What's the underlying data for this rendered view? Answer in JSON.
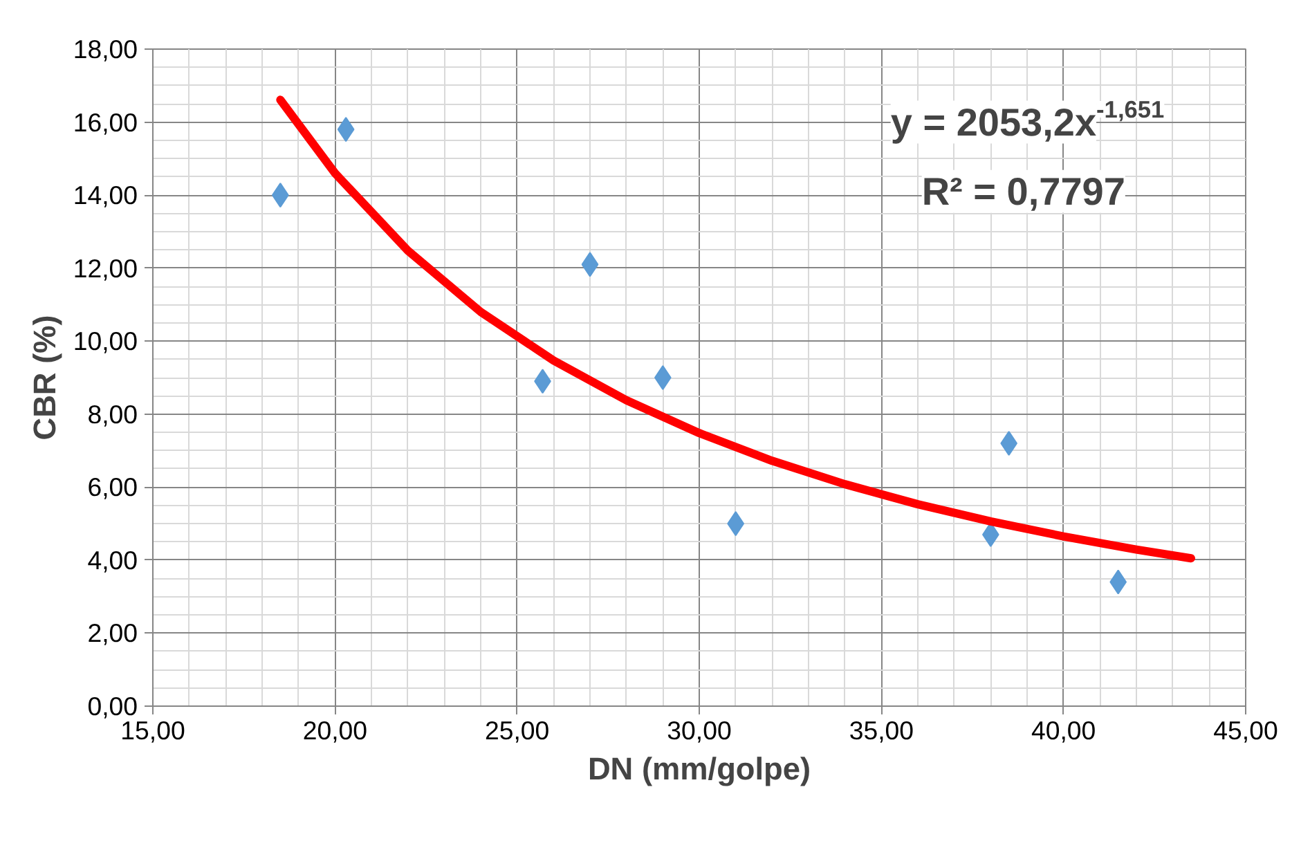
{
  "chart_data": {
    "type": "scatter",
    "xlabel": "DN (mm/golpe)",
    "ylabel": "CBR (%)",
    "xlim": [
      15,
      45
    ],
    "ylim": [
      0,
      18
    ],
    "xticks": [
      {
        "value": 15,
        "label": "15,00"
      },
      {
        "value": 20,
        "label": "20,00"
      },
      {
        "value": 25,
        "label": "25,00"
      },
      {
        "value": 30,
        "label": "30,00"
      },
      {
        "value": 35,
        "label": "35,00"
      },
      {
        "value": 40,
        "label": "40,00"
      },
      {
        "value": 45,
        "label": "45,00"
      }
    ],
    "yticks": [
      {
        "value": 0,
        "label": "0,00"
      },
      {
        "value": 2,
        "label": "2,00"
      },
      {
        "value": 4,
        "label": "4,00"
      },
      {
        "value": 6,
        "label": "6,00"
      },
      {
        "value": 8,
        "label": "8,00"
      },
      {
        "value": 10,
        "label": "10,00"
      },
      {
        "value": 12,
        "label": "12,00"
      },
      {
        "value": 14,
        "label": "14,00"
      },
      {
        "value": 16,
        "label": "16,00"
      },
      {
        "value": 18,
        "label": "18,00"
      }
    ],
    "grid": true,
    "series": [
      {
        "marker": "diamond",
        "color": "#5b9bd5",
        "x": [
          18.5,
          20.3,
          25.7,
          27.0,
          29.0,
          31.0,
          38.0,
          38.5,
          41.5
        ],
        "values": [
          14.0,
          15.8,
          8.9,
          12.1,
          9.0,
          5.0,
          4.7,
          7.2,
          3.4
        ]
      },
      {
        "type": "line",
        "marker": "none",
        "color": "#ff0000",
        "x": [
          18.5,
          20,
          22,
          24,
          26,
          28,
          30,
          32,
          34,
          36,
          38,
          40,
          42,
          43.5
        ],
        "values": [
          16.61,
          14.6,
          12.48,
          10.8,
          9.47,
          8.38,
          7.48,
          6.72,
          6.08,
          5.53,
          5.06,
          4.65,
          4.29,
          4.05
        ]
      }
    ],
    "annotations": [
      "y = 2053,2x$^{-1,651}$",
      "R² = 0,7797"
    ]
  }
}
